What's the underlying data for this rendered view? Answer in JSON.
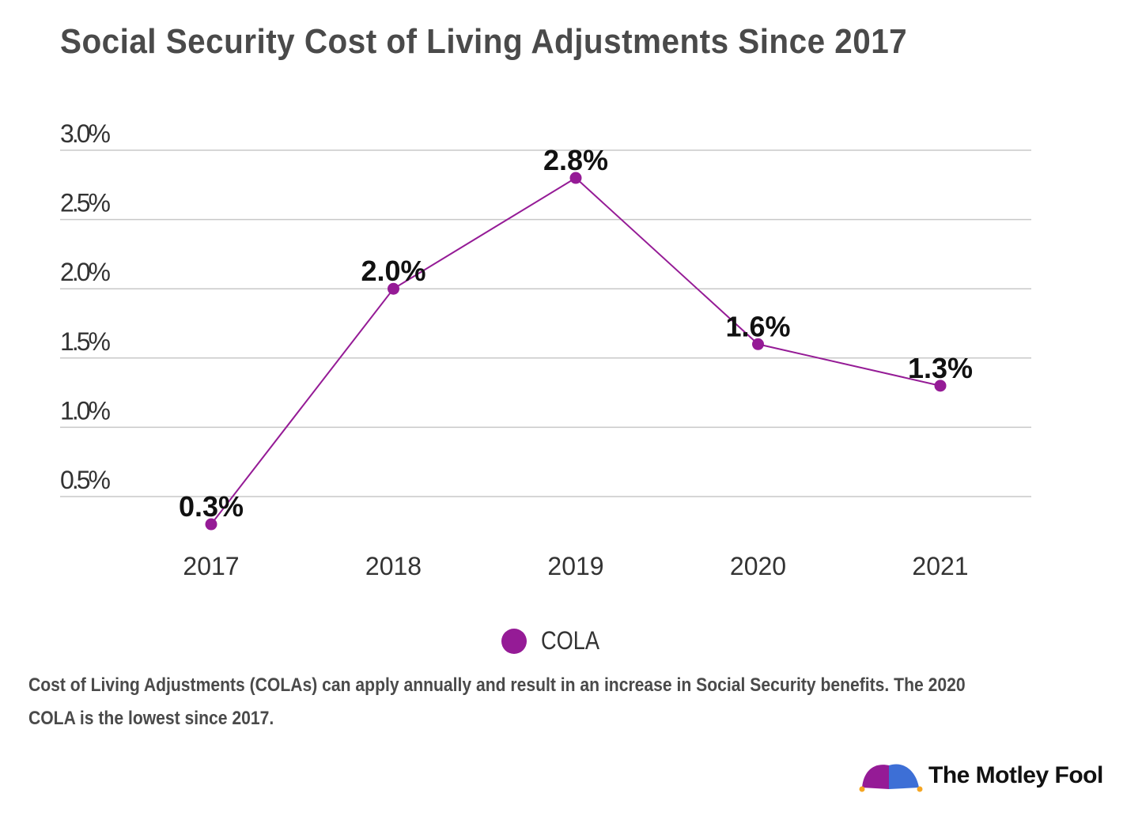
{
  "chart_data": {
    "type": "line",
    "title": "Social Security Cost of Living Adjustments Since 2017",
    "categories": [
      "2017",
      "2018",
      "2019",
      "2020",
      "2021"
    ],
    "series": [
      {
        "name": "COLA",
        "values": [
          0.3,
          2.0,
          2.8,
          1.6,
          1.3
        ],
        "color": "#951b96"
      }
    ],
    "data_labels": [
      "0.3%",
      "2.0%",
      "2.8%",
      "1.6%",
      "1.3%"
    ],
    "yticks": [
      0.5,
      1.0,
      1.5,
      2.0,
      2.5,
      3.0
    ],
    "ytick_labels": [
      "0.5%",
      "1.0%",
      "1.5%",
      "2.0%",
      "2.5%",
      "3.0%"
    ],
    "ylim": [
      0,
      3.0
    ],
    "grid": true,
    "legend": "bottom-center",
    "xlabel": "",
    "ylabel": ""
  },
  "caption": "Cost of Living Adjustments (COLAs) can apply annually and result in an increase in Social Security benefits. The 2020 COLA is the lowest since 2017.",
  "logo": {
    "text": "The Motley Fool",
    "colors": [
      "#951b96",
      "#3d6fd6",
      "#f5a623"
    ]
  }
}
